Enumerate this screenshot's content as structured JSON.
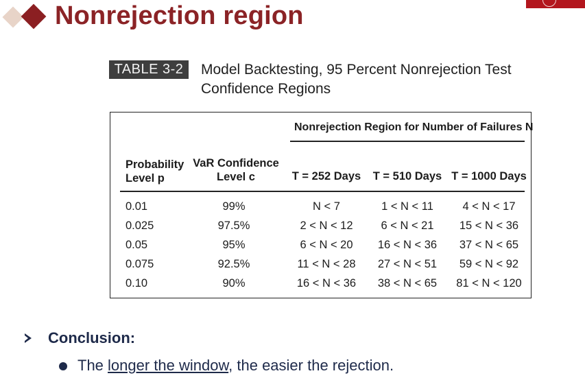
{
  "title": "Nonrejection region",
  "table": {
    "tag": "TABLE 3-2",
    "caption_line1": "Model Backtesting, 95 Percent Nonrejection Test",
    "caption_line2": "Confidence Regions",
    "group_header": "Nonrejection Region for Number of Failures N",
    "col_prob_1": "Probability",
    "col_prob_2": "Level p",
    "col_var_1": "VaR Confidence",
    "col_var_2": "Level c",
    "col_t252": "T = 252 Days",
    "col_t510": "T = 510 Days",
    "col_t1000": "T = 1000 Days",
    "rows": [
      {
        "p": "0.01",
        "c": "99%",
        "t252": "N < 7",
        "t510": "1 < N < 11",
        "t1000": "4 < N < 17"
      },
      {
        "p": "0.025",
        "c": "97.5%",
        "t252": "2 < N < 12",
        "t510": "6 < N < 21",
        "t1000": "15 < N < 36"
      },
      {
        "p": "0.05",
        "c": "95%",
        "t252": "6 < N < 20",
        "t510": "16 < N < 36",
        "t1000": "37 < N < 65"
      },
      {
        "p": "0.075",
        "c": "92.5%",
        "t252": "11 < N < 28",
        "t510": "27 < N < 51",
        "t1000": "59 < N < 92"
      },
      {
        "p": "0.10",
        "c": "90%",
        "t252": "16 < N < 36",
        "t510": "38 < N < 65",
        "t1000": "81 < N < 120"
      }
    ]
  },
  "conclusion": {
    "heading": "Conclusion:",
    "bullet_before": "The ",
    "bullet_underlined": "longer the window",
    "bullet_after": ", the easier the rejection."
  },
  "colors": {
    "title": "#8b2326",
    "text": "#1e2a4a",
    "brand_bar": "#b3161d"
  }
}
